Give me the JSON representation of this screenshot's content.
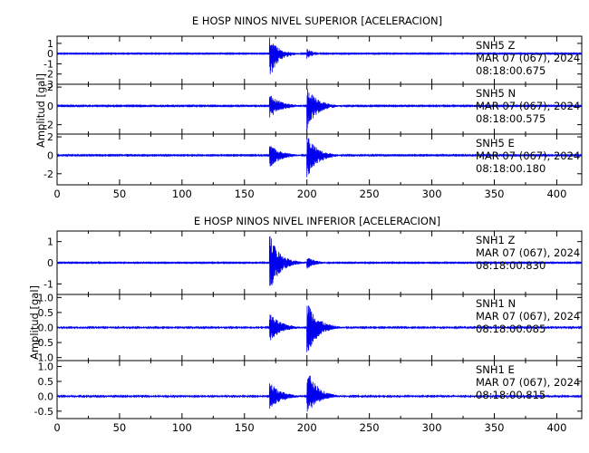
{
  "chart_data": [
    {
      "type": "line",
      "title": "E HOSP NINOS NIVEL SUPERIOR [ACELERACION]",
      "ylabel": "Amplitud [gal]",
      "xlim": [
        0,
        420
      ],
      "x_ticks": [
        0,
        50,
        100,
        150,
        200,
        250,
        300,
        350,
        400
      ],
      "x_tick_labels": [
        "0",
        "50",
        "100",
        "150",
        "200",
        "250",
        "300",
        "350",
        "400"
      ],
      "traces": [
        {
          "station": "SNH5",
          "component": "Z",
          "date": "MAR 07 (067), 2024",
          "time": "08:18:00.675",
          "ylim": [
            -3,
            1.7
          ],
          "y_ticks": [
            1,
            0,
            -1,
            -2,
            -3
          ],
          "y_tick_labels": [
            "1",
            "0",
            "-1",
            "-2",
            "-3"
          ],
          "events": [
            {
              "t": 170,
              "peak_pos": 1.6,
              "peak_neg": -2.6,
              "decay": 7
            },
            {
              "t": 200,
              "peak_pos": 0.5,
              "peak_neg": -0.5,
              "decay": 6
            }
          ],
          "noise": 0.04
        },
        {
          "station": "SNH5",
          "component": "N",
          "date": "MAR 07 (067), 2024",
          "time": "08:18:00.575",
          "ylim": [
            -3,
            2.3
          ],
          "y_ticks": [
            2,
            0,
            -2
          ],
          "y_tick_labels": [
            "2",
            "0",
            "-2"
          ],
          "events": [
            {
              "t": 170,
              "peak_pos": 1.3,
              "peak_neg": -1.4,
              "decay": 9
            },
            {
              "t": 200,
              "peak_pos": 2.1,
              "peak_neg": -2.6,
              "decay": 8
            }
          ],
          "noise": 0.05
        },
        {
          "station": "SNH5",
          "component": "E",
          "date": "MAR 07 (067), 2024",
          "time": "08:18:00.180",
          "ylim": [
            -3.2,
            2.3
          ],
          "y_ticks": [
            2,
            0,
            -2
          ],
          "y_tick_labels": [
            "2",
            "0",
            "-2"
          ],
          "events": [
            {
              "t": 170,
              "peak_pos": 1.2,
              "peak_neg": -1.4,
              "decay": 9
            },
            {
              "t": 200,
              "peak_pos": 2.3,
              "peak_neg": -2.8,
              "decay": 8
            }
          ],
          "noise": 0.05
        }
      ]
    },
    {
      "type": "line",
      "title": "E HOSP NINOS NIVEL INFERIOR [ACELERACION]",
      "ylabel": "Amplitud [gal]",
      "xlim": [
        0,
        420
      ],
      "x_ticks": [
        0,
        50,
        100,
        150,
        200,
        250,
        300,
        350,
        400
      ],
      "x_tick_labels": [
        "0",
        "50",
        "100",
        "150",
        "200",
        "250",
        "300",
        "350",
        "400"
      ],
      "traces": [
        {
          "station": "SNH1",
          "component": "Z",
          "date": "MAR 07 (067), 2024",
          "time": "08:18:00.830",
          "ylim": [
            -1.5,
            1.5
          ],
          "y_ticks": [
            1,
            0,
            -1
          ],
          "y_tick_labels": [
            "1",
            "0",
            "-1"
          ],
          "events": [
            {
              "t": 170,
              "peak_pos": 1.4,
              "peak_neg": -1.4,
              "decay": 8
            },
            {
              "t": 200,
              "peak_pos": 0.3,
              "peak_neg": -0.3,
              "decay": 7
            }
          ],
          "noise": 0.02
        },
        {
          "station": "SNH1",
          "component": "N",
          "date": "MAR 07 (067), 2024",
          "time": "08:18:00.085",
          "ylim": [
            -1.1,
            1.1
          ],
          "y_ticks": [
            1.0,
            0.5,
            0.0,
            -0.5,
            -1.0
          ],
          "y_tick_labels": [
            "1.0",
            "0.5",
            "0.0",
            "-0.5",
            "-1.0"
          ],
          "events": [
            {
              "t": 170,
              "peak_pos": 0.5,
              "peak_neg": -0.5,
              "decay": 9
            },
            {
              "t": 200,
              "peak_pos": 1.0,
              "peak_neg": -1.0,
              "decay": 8
            }
          ],
          "noise": 0.02
        },
        {
          "station": "SNH1",
          "component": "E",
          "date": "MAR 07 (067), 2024",
          "time": "08:18:00.815",
          "ylim": [
            -0.75,
            1.2
          ],
          "y_ticks": [
            1.0,
            0.5,
            0.0,
            -0.5
          ],
          "y_tick_labels": [
            "1.0",
            "0.5",
            "0.0",
            "-0.5"
          ],
          "events": [
            {
              "t": 170,
              "peak_pos": 0.5,
              "peak_neg": -0.5,
              "decay": 9
            },
            {
              "t": 200,
              "peak_pos": 1.0,
              "peak_neg": -0.65,
              "decay": 8
            }
          ],
          "noise": 0.02
        }
      ]
    }
  ],
  "colors": {
    "trace": "#0000ee",
    "axis": "#000000"
  }
}
